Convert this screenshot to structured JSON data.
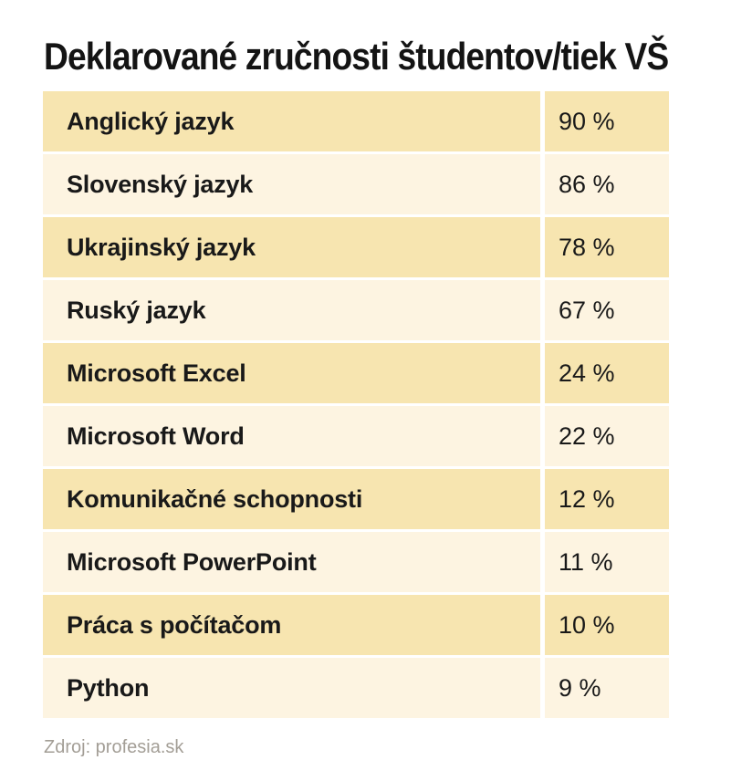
{
  "title": "Deklarované zručnosti študentov/tiek VŠ",
  "footer": {
    "source_label": "Zdroj: profesia.sk"
  },
  "colors": {
    "background": "#FFFFFF",
    "row_dark": "#F7E5B0",
    "row_light": "#FDF4E1",
    "title_text": "#141414",
    "row_text": "#191919",
    "source_text": "#A39E96"
  },
  "chart_data": {
    "type": "table",
    "title": "Deklarované zručnosti študentov/tiek VŠ",
    "source": "Zdroj: profesia.sk",
    "unit": "%",
    "categories": [
      "Anglický jazyk",
      "Slovenský jazyk",
      "Ukrajinský jazyk",
      "Ruský jazyk",
      "Microsoft Excel",
      "Microsoft Word",
      "Komunikačné schopnosti",
      "Microsoft PowerPoint",
      "Práca s počítačom",
      "Python"
    ],
    "values": [
      90,
      86,
      78,
      67,
      24,
      22,
      12,
      11,
      10,
      9
    ],
    "rows": [
      {
        "skill": "Anglický jazyk",
        "percent": 90,
        "percent_label": "90 %"
      },
      {
        "skill": "Slovenský jazyk",
        "percent": 86,
        "percent_label": "86 %"
      },
      {
        "skill": "Ukrajinský jazyk",
        "percent": 78,
        "percent_label": "78 %"
      },
      {
        "skill": "Ruský jazyk",
        "percent": 67,
        "percent_label": "67 %"
      },
      {
        "skill": "Microsoft Excel",
        "percent": 24,
        "percent_label": "24 %"
      },
      {
        "skill": "Microsoft Word",
        "percent": 22,
        "percent_label": "22 %"
      },
      {
        "skill": "Komunikačné schopnosti",
        "percent": 12,
        "percent_label": "12 %"
      },
      {
        "skill": "Microsoft PowerPoint",
        "percent": 11,
        "percent_label": "11 %"
      },
      {
        "skill": "Práca s počítačom",
        "percent": 10,
        "percent_label": "10 %"
      },
      {
        "skill": "Python",
        "percent": 9,
        "percent_label": "9 %"
      }
    ]
  }
}
